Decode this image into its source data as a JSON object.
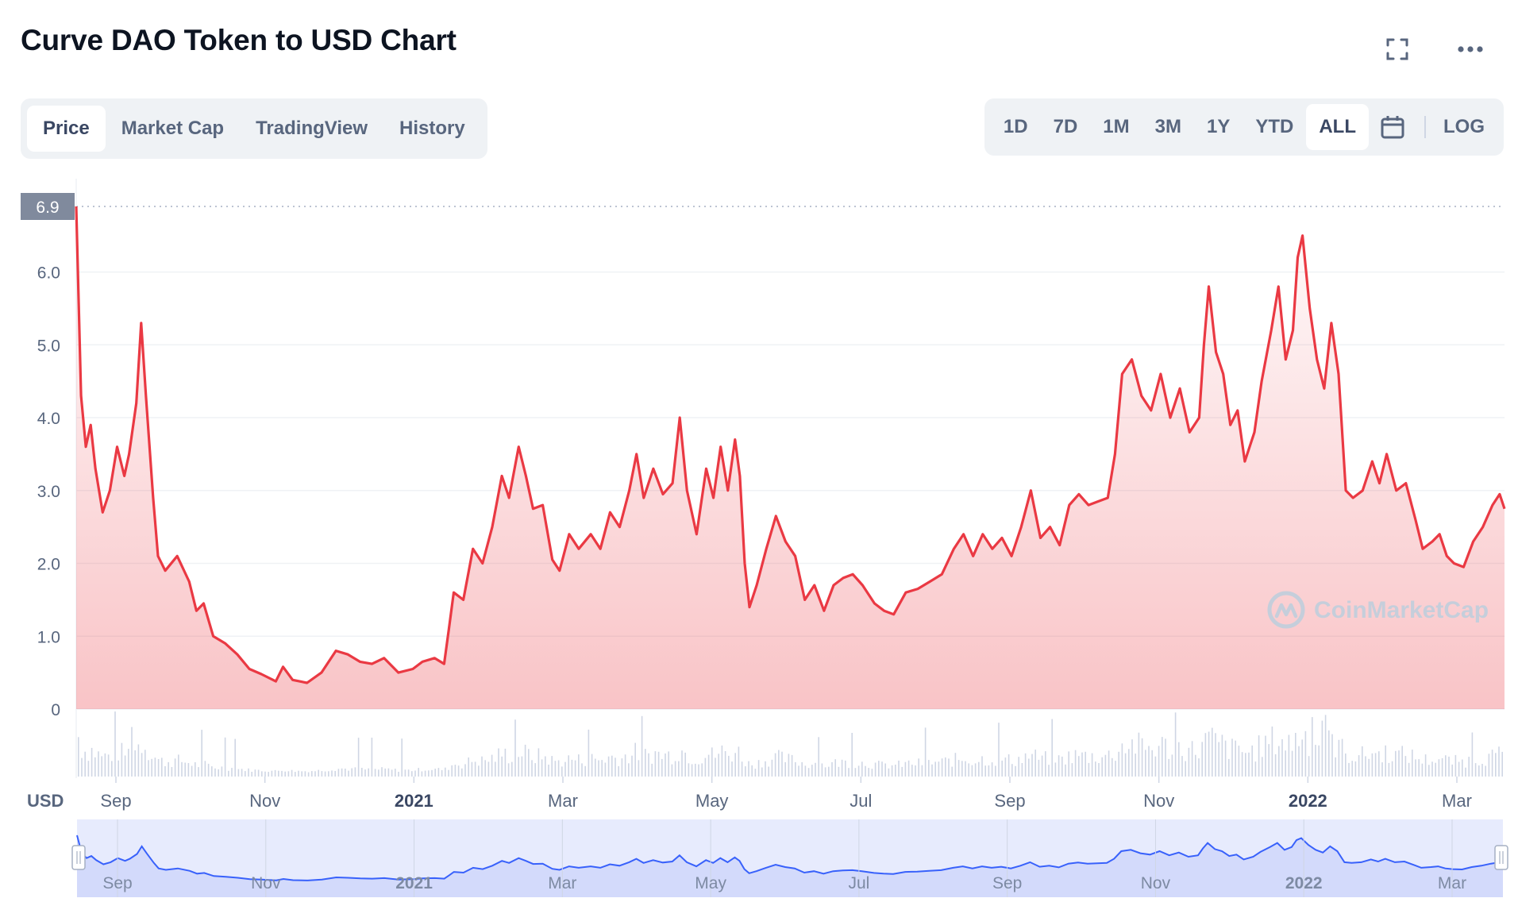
{
  "title": "Curve DAO Token to USD Chart",
  "icons": {
    "fullscreen": "fullscreen-icon",
    "more": "more-horizontal-icon",
    "calendar": "calendar-icon",
    "watermark_logo": "coinmarketcap-logo-icon"
  },
  "tabs": [
    {
      "label": "Price",
      "active": true
    },
    {
      "label": "Market Cap",
      "active": false
    },
    {
      "label": "TradingView",
      "active": false
    },
    {
      "label": "History",
      "active": false
    }
  ],
  "ranges": [
    {
      "label": "1D",
      "active": false
    },
    {
      "label": "7D",
      "active": false
    },
    {
      "label": "1M",
      "active": false
    },
    {
      "label": "3M",
      "active": false
    },
    {
      "label": "1Y",
      "active": false
    },
    {
      "label": "YTD",
      "active": false
    },
    {
      "label": "ALL",
      "active": true
    }
  ],
  "log_label": "LOG",
  "watermark": "CoinMarketCap",
  "colors": {
    "line": "#ea3943",
    "navigator_line": "#3861fb",
    "navigator_fill": "#e7ebfd",
    "volume": "#cfd6e4",
    "grid": "#eff2f5",
    "axis_text": "#58667e"
  },
  "chart_data": {
    "type": "area",
    "title": "Curve DAO Token to USD Chart",
    "ylabel": "USD",
    "ylim": [
      0,
      6.9
    ],
    "yticks": [
      "0",
      "1.0",
      "2.0",
      "3.0",
      "4.0",
      "5.0",
      "6.0"
    ],
    "current_price_label": "6.9",
    "grid": true,
    "xlabels": [
      "Sep",
      "Nov",
      "2021",
      "Mar",
      "May",
      "Jul",
      "Sep",
      "Nov",
      "2022",
      "Mar"
    ],
    "x_range": [
      "2020-08-14",
      "2022-03-31"
    ],
    "series": [
      {
        "values": [
          [
            "2020-08-14",
            6.9
          ],
          [
            "2020-08-16",
            4.3
          ],
          [
            "2020-08-18",
            3.6
          ],
          [
            "2020-08-20",
            3.9
          ],
          [
            "2020-08-22",
            3.3
          ],
          [
            "2020-08-25",
            2.7
          ],
          [
            "2020-08-28",
            3.0
          ],
          [
            "2020-08-31",
            3.6
          ],
          [
            "2020-09-03",
            3.2
          ],
          [
            "2020-09-05",
            3.5
          ],
          [
            "2020-09-08",
            4.2
          ],
          [
            "2020-09-10",
            5.3
          ],
          [
            "2020-09-12",
            4.3
          ],
          [
            "2020-09-15",
            2.9
          ],
          [
            "2020-09-17",
            2.1
          ],
          [
            "2020-09-20",
            1.9
          ],
          [
            "2020-09-25",
            2.1
          ],
          [
            "2020-09-30",
            1.75
          ],
          [
            "2020-10-03",
            1.35
          ],
          [
            "2020-10-06",
            1.45
          ],
          [
            "2020-10-10",
            1.0
          ],
          [
            "2020-10-15",
            0.9
          ],
          [
            "2020-10-20",
            0.75
          ],
          [
            "2020-10-25",
            0.55
          ],
          [
            "2020-10-30",
            0.48
          ],
          [
            "2020-11-05",
            0.38
          ],
          [
            "2020-11-08",
            0.58
          ],
          [
            "2020-11-12",
            0.4
          ],
          [
            "2020-11-18",
            0.36
          ],
          [
            "2020-11-24",
            0.5
          ],
          [
            "2020-11-30",
            0.8
          ],
          [
            "2020-12-05",
            0.75
          ],
          [
            "2020-12-10",
            0.65
          ],
          [
            "2020-12-15",
            0.62
          ],
          [
            "2020-12-20",
            0.7
          ],
          [
            "2020-12-26",
            0.5
          ],
          [
            "2021-01-01",
            0.55
          ],
          [
            "2021-01-05",
            0.65
          ],
          [
            "2021-01-10",
            0.7
          ],
          [
            "2021-01-14",
            0.62
          ],
          [
            "2021-01-16",
            1.1
          ],
          [
            "2021-01-18",
            1.6
          ],
          [
            "2021-01-22",
            1.5
          ],
          [
            "2021-01-26",
            2.2
          ],
          [
            "2021-01-30",
            2.0
          ],
          [
            "2021-02-03",
            2.5
          ],
          [
            "2021-02-07",
            3.2
          ],
          [
            "2021-02-10",
            2.9
          ],
          [
            "2021-02-14",
            3.6
          ],
          [
            "2021-02-17",
            3.2
          ],
          [
            "2021-02-20",
            2.75
          ],
          [
            "2021-02-24",
            2.8
          ],
          [
            "2021-02-28",
            2.05
          ],
          [
            "2021-03-03",
            1.9
          ],
          [
            "2021-03-07",
            2.4
          ],
          [
            "2021-03-11",
            2.2
          ],
          [
            "2021-03-16",
            2.4
          ],
          [
            "2021-03-20",
            2.2
          ],
          [
            "2021-03-24",
            2.7
          ],
          [
            "2021-03-28",
            2.5
          ],
          [
            "2021-04-01",
            3.0
          ],
          [
            "2021-04-04",
            3.5
          ],
          [
            "2021-04-07",
            2.9
          ],
          [
            "2021-04-11",
            3.3
          ],
          [
            "2021-04-15",
            2.95
          ],
          [
            "2021-04-19",
            3.1
          ],
          [
            "2021-04-22",
            4.0
          ],
          [
            "2021-04-25",
            3.0
          ],
          [
            "2021-04-29",
            2.4
          ],
          [
            "2021-05-03",
            3.3
          ],
          [
            "2021-05-06",
            2.9
          ],
          [
            "2021-05-09",
            3.6
          ],
          [
            "2021-05-12",
            3.0
          ],
          [
            "2021-05-15",
            3.7
          ],
          [
            "2021-05-17",
            3.2
          ],
          [
            "2021-05-19",
            2.0
          ],
          [
            "2021-05-21",
            1.4
          ],
          [
            "2021-05-24",
            1.7
          ],
          [
            "2021-05-28",
            2.2
          ],
          [
            "2021-06-01",
            2.65
          ],
          [
            "2021-06-05",
            2.3
          ],
          [
            "2021-06-09",
            2.1
          ],
          [
            "2021-06-13",
            1.5
          ],
          [
            "2021-06-17",
            1.7
          ],
          [
            "2021-06-21",
            1.35
          ],
          [
            "2021-06-25",
            1.7
          ],
          [
            "2021-06-29",
            1.8
          ],
          [
            "2021-07-03",
            1.85
          ],
          [
            "2021-07-07",
            1.7
          ],
          [
            "2021-07-12",
            1.45
          ],
          [
            "2021-07-16",
            1.35
          ],
          [
            "2021-07-20",
            1.3
          ],
          [
            "2021-07-25",
            1.6
          ],
          [
            "2021-07-30",
            1.65
          ],
          [
            "2021-08-04",
            1.75
          ],
          [
            "2021-08-09",
            1.85
          ],
          [
            "2021-08-14",
            2.2
          ],
          [
            "2021-08-18",
            2.4
          ],
          [
            "2021-08-22",
            2.1
          ],
          [
            "2021-08-26",
            2.4
          ],
          [
            "2021-08-30",
            2.2
          ],
          [
            "2021-09-03",
            2.35
          ],
          [
            "2021-09-07",
            2.1
          ],
          [
            "2021-09-11",
            2.5
          ],
          [
            "2021-09-15",
            3.0
          ],
          [
            "2021-09-19",
            2.35
          ],
          [
            "2021-09-23",
            2.5
          ],
          [
            "2021-09-27",
            2.25
          ],
          [
            "2021-10-01",
            2.8
          ],
          [
            "2021-10-05",
            2.95
          ],
          [
            "2021-10-09",
            2.8
          ],
          [
            "2021-10-13",
            2.85
          ],
          [
            "2021-10-17",
            2.9
          ],
          [
            "2021-10-20",
            3.5
          ],
          [
            "2021-10-23",
            4.6
          ],
          [
            "2021-10-27",
            4.8
          ],
          [
            "2021-10-31",
            4.3
          ],
          [
            "2021-11-04",
            4.1
          ],
          [
            "2021-11-08",
            4.6
          ],
          [
            "2021-11-12",
            4.0
          ],
          [
            "2021-11-16",
            4.4
          ],
          [
            "2021-11-20",
            3.8
          ],
          [
            "2021-11-24",
            4.0
          ],
          [
            "2021-11-26",
            5.0
          ],
          [
            "2021-11-28",
            5.8
          ],
          [
            "2021-12-01",
            4.9
          ],
          [
            "2021-12-04",
            4.6
          ],
          [
            "2021-12-07",
            3.9
          ],
          [
            "2021-12-10",
            4.1
          ],
          [
            "2021-12-13",
            3.4
          ],
          [
            "2021-12-17",
            3.8
          ],
          [
            "2021-12-20",
            4.5
          ],
          [
            "2021-12-24",
            5.2
          ],
          [
            "2021-12-27",
            5.8
          ],
          [
            "2021-12-30",
            4.8
          ],
          [
            "2022-01-02",
            5.2
          ],
          [
            "2022-01-04",
            6.2
          ],
          [
            "2022-01-06",
            6.5
          ],
          [
            "2022-01-09",
            5.5
          ],
          [
            "2022-01-12",
            4.8
          ],
          [
            "2022-01-15",
            4.4
          ],
          [
            "2022-01-18",
            5.3
          ],
          [
            "2022-01-21",
            4.6
          ],
          [
            "2022-01-24",
            3.0
          ],
          [
            "2022-01-27",
            2.9
          ],
          [
            "2022-01-31",
            3.0
          ],
          [
            "2022-02-04",
            3.4
          ],
          [
            "2022-02-07",
            3.1
          ],
          [
            "2022-02-10",
            3.5
          ],
          [
            "2022-02-14",
            3.0
          ],
          [
            "2022-02-18",
            3.1
          ],
          [
            "2022-02-22",
            2.6
          ],
          [
            "2022-02-25",
            2.2
          ],
          [
            "2022-03-01",
            2.3
          ],
          [
            "2022-03-04",
            2.4
          ],
          [
            "2022-03-07",
            2.1
          ],
          [
            "2022-03-10",
            2.0
          ],
          [
            "2022-03-14",
            1.95
          ],
          [
            "2022-03-18",
            2.3
          ],
          [
            "2022-03-22",
            2.5
          ],
          [
            "2022-03-26",
            2.8
          ],
          [
            "2022-03-29",
            2.95
          ],
          [
            "2022-03-31",
            2.75
          ]
        ]
      }
    ]
  }
}
